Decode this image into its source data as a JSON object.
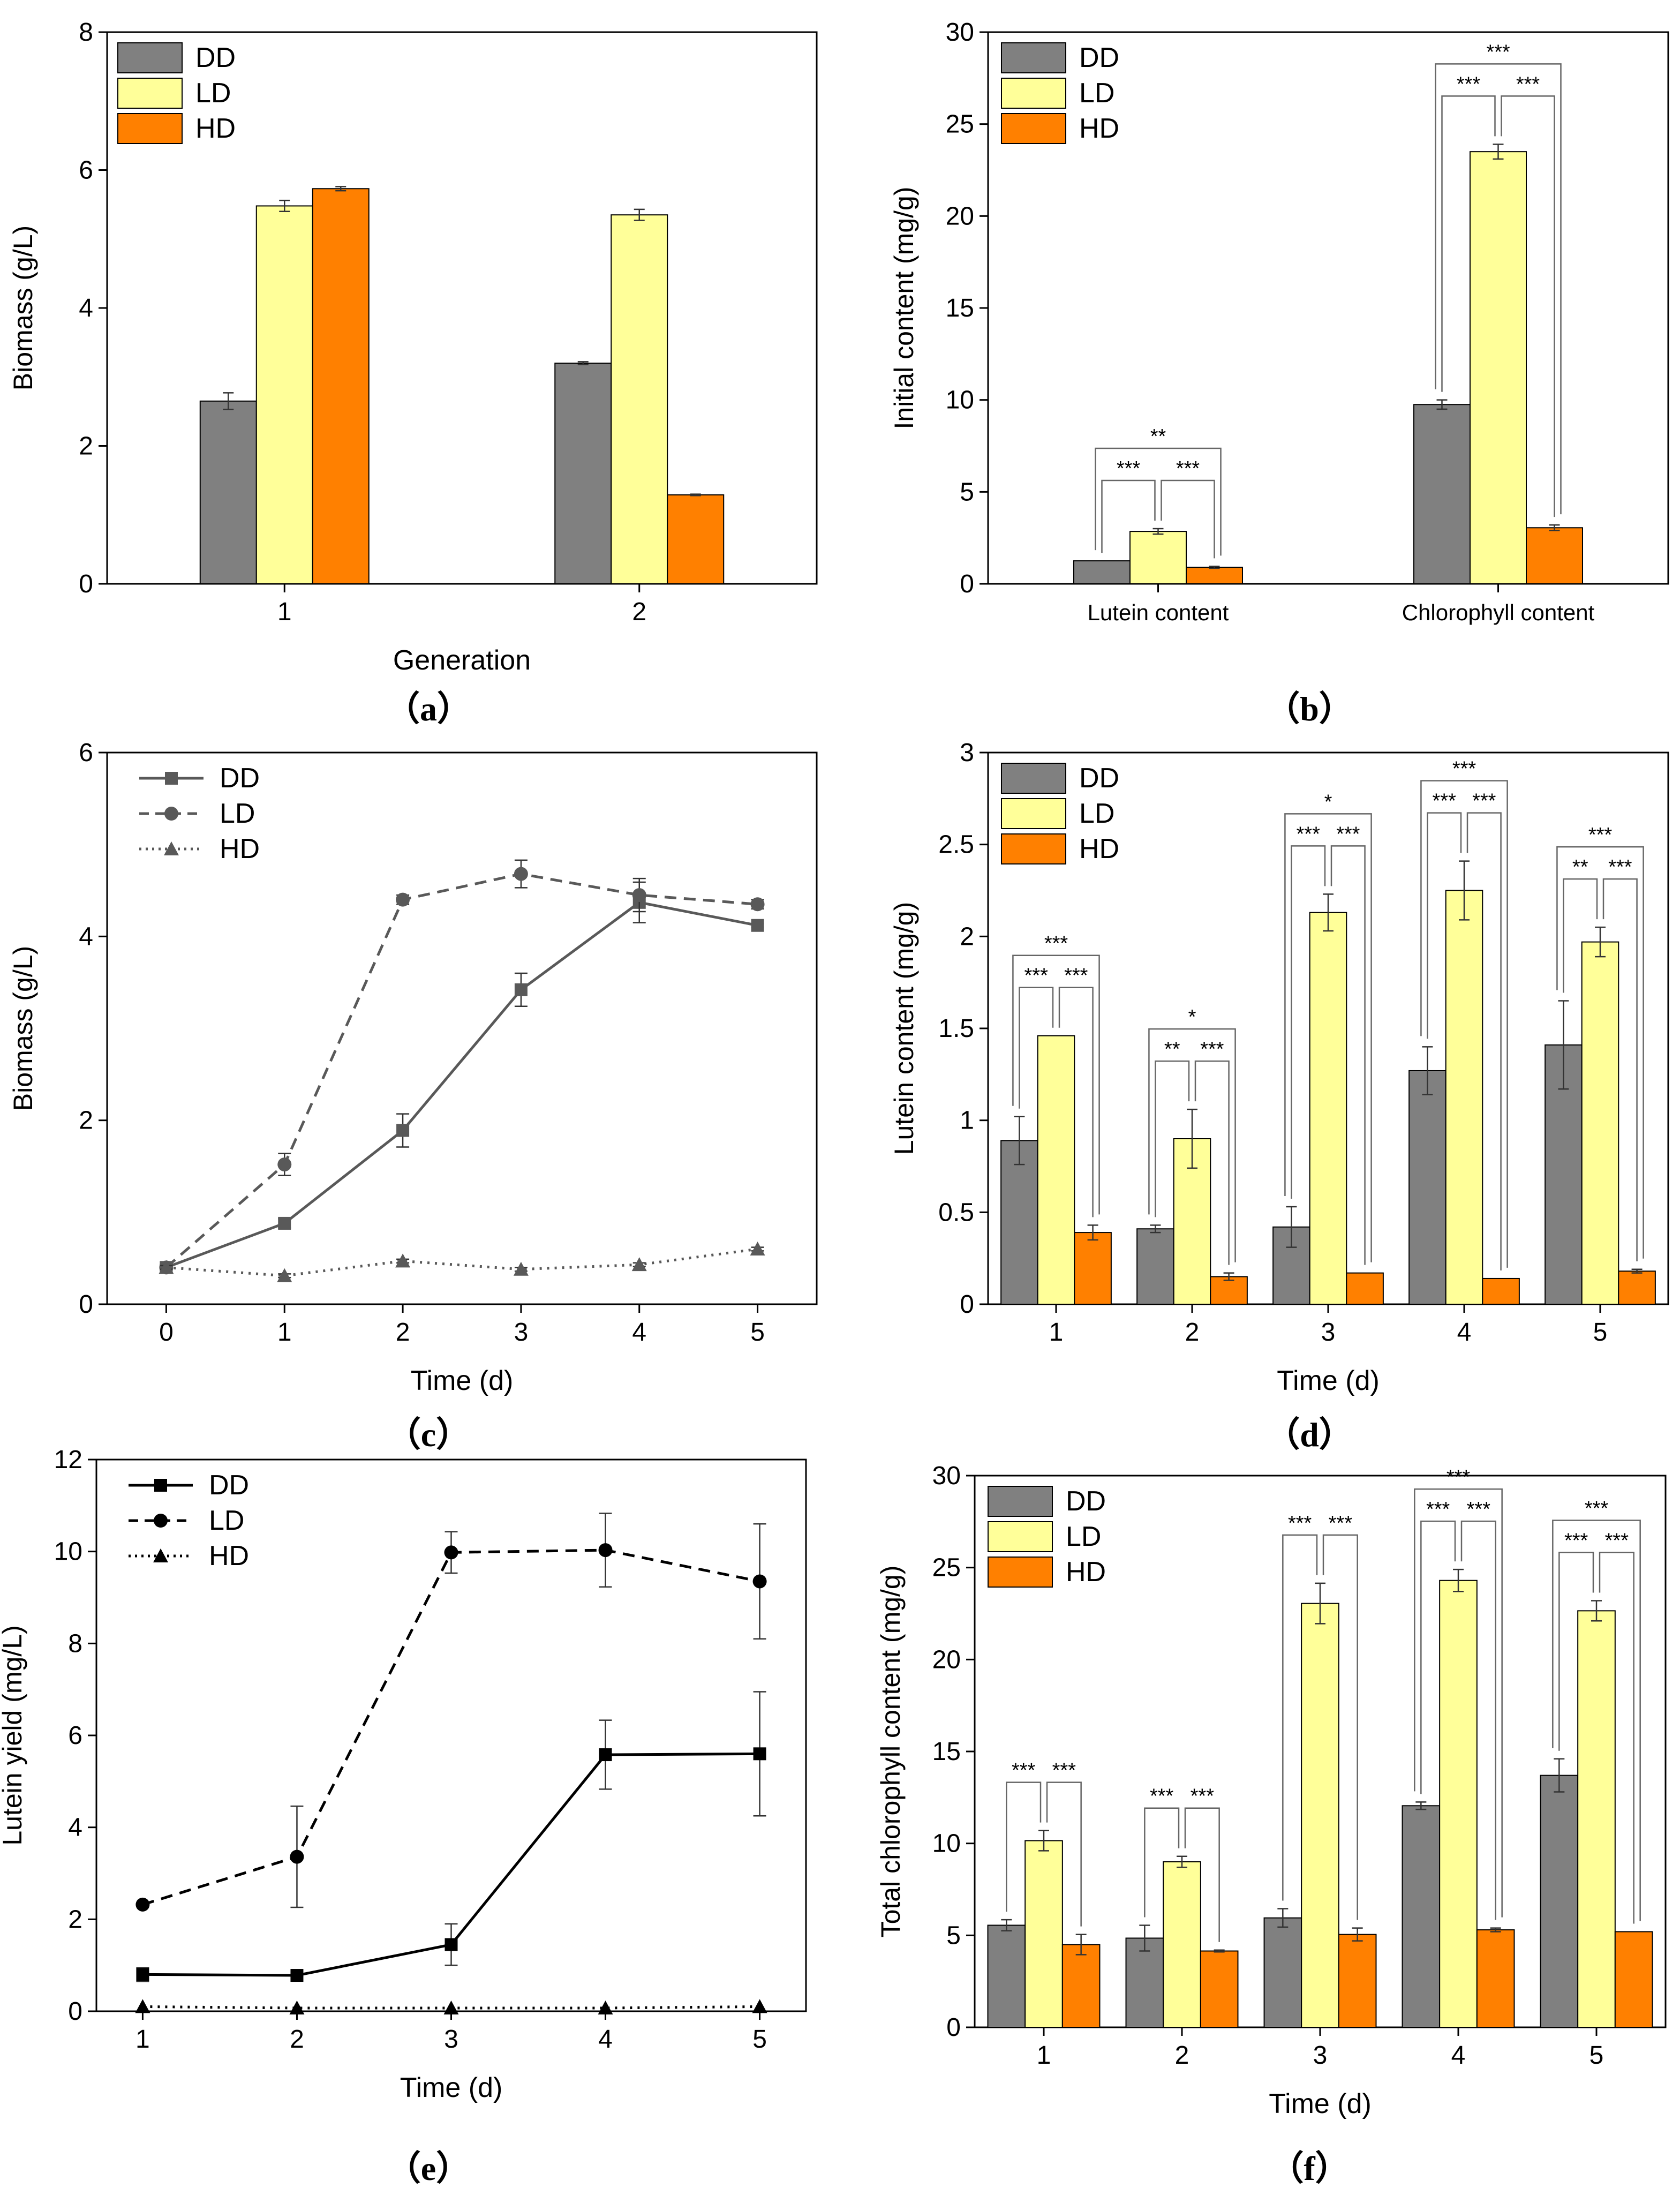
{
  "colors": {
    "DD": "#808080",
    "LD": "#ffff99",
    "HD": "#ff8000",
    "line_grey": "#595959",
    "line_black": "#000000",
    "axis": "#000000"
  },
  "panel_labels": {
    "a": "（a）",
    "b": "（b）",
    "c": "（c）",
    "d": "（d）",
    "e": "（e）",
    "f": "（f）"
  },
  "chart_data": [
    {
      "id": "a",
      "type": "bar",
      "title": "",
      "xlabel": "Generation",
      "ylabel": "Biomass (g/L)",
      "ylim": [
        0,
        8
      ],
      "yticks": [
        0,
        2,
        4,
        6,
        8
      ],
      "categories": [
        "1",
        "2"
      ],
      "legend": "top-left",
      "series": [
        {
          "name": "DD",
          "values": [
            2.65,
            3.2
          ],
          "errors": [
            0.12,
            0.02
          ]
        },
        {
          "name": "LD",
          "values": [
            5.48,
            5.35
          ],
          "errors": [
            0.08,
            0.08
          ]
        },
        {
          "name": "HD",
          "values": [
            5.73,
            1.29
          ],
          "errors": [
            0.03,
            0.01
          ]
        }
      ],
      "significance": []
    },
    {
      "id": "b",
      "type": "bar",
      "title": "",
      "xlabel": "",
      "ylabel": "Initial content (mg/g)",
      "ylim": [
        0,
        30
      ],
      "yticks": [
        0,
        5,
        10,
        15,
        20,
        25,
        30
      ],
      "categories": [
        "Lutein content",
        "Chlorophyll content"
      ],
      "legend": "top-left",
      "series": [
        {
          "name": "DD",
          "values": [
            1.25,
            9.75
          ],
          "errors": [
            0.0,
            0.25
          ]
        },
        {
          "name": "LD",
          "values": [
            2.85,
            23.5
          ],
          "errors": [
            0.15,
            0.4
          ]
        },
        {
          "name": "HD",
          "values": [
            0.9,
            3.05
          ],
          "errors": [
            0.05,
            0.15
          ]
        }
      ],
      "significance": [
        {
          "cat": 0,
          "pair": "DD-LD",
          "label": "***"
        },
        {
          "cat": 0,
          "pair": "LD-HD",
          "label": "***"
        },
        {
          "cat": 0,
          "pair": "DD-HD",
          "label": "**"
        },
        {
          "cat": 1,
          "pair": "DD-LD",
          "label": "***"
        },
        {
          "cat": 1,
          "pair": "LD-HD",
          "label": "***"
        },
        {
          "cat": 1,
          "pair": "DD-HD",
          "label": "***"
        }
      ]
    },
    {
      "id": "c",
      "type": "line",
      "title": "",
      "xlabel": "Time (d)",
      "ylabel": "Biomass (g/L)",
      "ylim": [
        0,
        6
      ],
      "yticks": [
        0,
        2,
        4,
        6
      ],
      "xlim": [
        -0.5,
        5.5
      ],
      "xticks": [
        0,
        1,
        2,
        3,
        4,
        5
      ],
      "legend": "top-left",
      "x": [
        0,
        1,
        2,
        3,
        4,
        5
      ],
      "series": [
        {
          "name": "DD",
          "values": [
            0.4,
            0.88,
            1.89,
            3.42,
            4.37,
            4.12
          ],
          "errors": [
            0.03,
            0.05,
            0.18,
            0.18,
            0.22,
            0.02
          ],
          "marker": "square",
          "dash": "solid"
        },
        {
          "name": "LD",
          "values": [
            0.4,
            1.52,
            4.4,
            4.68,
            4.45,
            4.35
          ],
          "errors": [
            0.03,
            0.12,
            0.05,
            0.15,
            0.18,
            0.05
          ],
          "marker": "circle",
          "dash": "dashed"
        },
        {
          "name": "HD",
          "values": [
            0.4,
            0.31,
            0.47,
            0.38,
            0.43,
            0.6
          ],
          "errors": [
            0.02,
            0.02,
            0.02,
            0.02,
            0.02,
            0.02
          ],
          "marker": "triangle",
          "dash": "dotted"
        }
      ]
    },
    {
      "id": "d",
      "type": "bar",
      "title": "",
      "xlabel": "Time (d)",
      "ylabel": "Lutein content (mg/g)",
      "ylim": [
        0,
        3
      ],
      "yticks": [
        0,
        0.5,
        1,
        1.5,
        2,
        2.5,
        3
      ],
      "categories": [
        "1",
        "2",
        "3",
        "4",
        "5"
      ],
      "legend": "top-left",
      "series": [
        {
          "name": "DD",
          "values": [
            0.89,
            0.41,
            0.42,
            1.27,
            1.41
          ],
          "errors": [
            0.13,
            0.02,
            0.11,
            0.13,
            0.24
          ]
        },
        {
          "name": "LD",
          "values": [
            1.46,
            0.9,
            2.13,
            2.25,
            1.97
          ],
          "errors": [
            0.0,
            0.16,
            0.1,
            0.16,
            0.08
          ]
        },
        {
          "name": "HD",
          "values": [
            0.39,
            0.15,
            0.17,
            0.14,
            0.18
          ],
          "errors": [
            0.04,
            0.02,
            0.0,
            0.0,
            0.01
          ]
        }
      ],
      "significance": [
        {
          "cat": 0,
          "pair": "DD-LD",
          "label": "***"
        },
        {
          "cat": 0,
          "pair": "LD-HD",
          "label": "***"
        },
        {
          "cat": 0,
          "pair": "DD-HD",
          "label": "***"
        },
        {
          "cat": 1,
          "pair": "DD-LD",
          "label": "**"
        },
        {
          "cat": 1,
          "pair": "LD-HD",
          "label": "***"
        },
        {
          "cat": 1,
          "pair": "DD-HD",
          "label": "*"
        },
        {
          "cat": 2,
          "pair": "DD-LD",
          "label": "***"
        },
        {
          "cat": 2,
          "pair": "LD-HD",
          "label": "***"
        },
        {
          "cat": 2,
          "pair": "DD-HD",
          "label": "*"
        },
        {
          "cat": 3,
          "pair": "DD-LD",
          "label": "***"
        },
        {
          "cat": 3,
          "pair": "LD-HD",
          "label": "***"
        },
        {
          "cat": 3,
          "pair": "DD-HD",
          "label": "***"
        },
        {
          "cat": 4,
          "pair": "DD-LD",
          "label": "**"
        },
        {
          "cat": 4,
          "pair": "LD-HD",
          "label": "***"
        },
        {
          "cat": 4,
          "pair": "DD-HD",
          "label": "***"
        }
      ]
    },
    {
      "id": "e",
      "type": "line",
      "title": "",
      "xlabel": "Time (d)",
      "ylabel": "Lutein yield (mg/L)",
      "ylim": [
        0,
        12
      ],
      "yticks": [
        0,
        2,
        4,
        6,
        8,
        10,
        12
      ],
      "xlim": [
        0.7,
        5.3
      ],
      "xticks": [
        1,
        2,
        3,
        4,
        5
      ],
      "legend": "top-left",
      "x": [
        1,
        2,
        3,
        4,
        5
      ],
      "series": [
        {
          "name": "DD",
          "values": [
            0.8,
            0.78,
            1.45,
            5.58,
            5.6
          ],
          "errors": [
            0.15,
            0.02,
            0.45,
            0.75,
            1.35
          ],
          "marker": "square",
          "dash": "solid"
        },
        {
          "name": "LD",
          "values": [
            2.32,
            3.36,
            9.98,
            10.03,
            9.35
          ],
          "errors": [
            0.0,
            1.1,
            0.45,
            0.8,
            1.25
          ],
          "marker": "circle",
          "dash": "dashed"
        },
        {
          "name": "HD",
          "values": [
            0.1,
            0.07,
            0.07,
            0.07,
            0.1
          ],
          "errors": [
            0.0,
            0.0,
            0.0,
            0.0,
            0.0
          ],
          "marker": "triangle",
          "dash": "dotted"
        }
      ]
    },
    {
      "id": "f",
      "type": "bar",
      "title": "",
      "xlabel": "Time (d)",
      "ylabel": "Total chlorophyll content (mg/g)",
      "ylim": [
        0,
        30
      ],
      "yticks": [
        0,
        5,
        10,
        15,
        20,
        25,
        30
      ],
      "categories": [
        "1",
        "2",
        "3",
        "4",
        "5"
      ],
      "legend": "top-left",
      "series": [
        {
          "name": "DD",
          "values": [
            5.55,
            4.85,
            5.95,
            12.05,
            13.7
          ],
          "errors": [
            0.3,
            0.7,
            0.5,
            0.2,
            0.9
          ]
        },
        {
          "name": "LD",
          "values": [
            10.15,
            9.0,
            23.05,
            24.3,
            22.65
          ],
          "errors": [
            0.55,
            0.3,
            1.1,
            0.6,
            0.55
          ]
        },
        {
          "name": "HD",
          "values": [
            4.5,
            4.15,
            5.05,
            5.3,
            5.2
          ],
          "errors": [
            0.55,
            0.05,
            0.35,
            0.1,
            0.0
          ]
        }
      ],
      "significance": [
        {
          "cat": 0,
          "pair": "DD-LD",
          "label": "***"
        },
        {
          "cat": 0,
          "pair": "LD-HD",
          "label": "***"
        },
        {
          "cat": 1,
          "pair": "DD-LD",
          "label": "***"
        },
        {
          "cat": 1,
          "pair": "LD-HD",
          "label": "***"
        },
        {
          "cat": 2,
          "pair": "DD-LD",
          "label": "***"
        },
        {
          "cat": 2,
          "pair": "LD-HD",
          "label": "***"
        },
        {
          "cat": 3,
          "pair": "DD-LD",
          "label": "***"
        },
        {
          "cat": 3,
          "pair": "LD-HD",
          "label": "***"
        },
        {
          "cat": 3,
          "pair": "DD-HD",
          "label": "***"
        },
        {
          "cat": 4,
          "pair": "DD-LD",
          "label": "***"
        },
        {
          "cat": 4,
          "pair": "LD-HD",
          "label": "***"
        },
        {
          "cat": 4,
          "pair": "DD-HD",
          "label": "***"
        }
      ]
    }
  ]
}
